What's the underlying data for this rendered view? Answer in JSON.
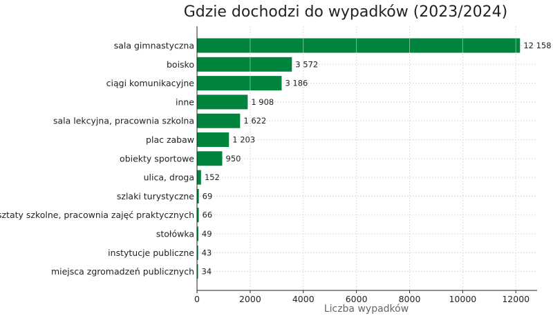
{
  "chart_data": {
    "type": "bar",
    "orientation": "horizontal",
    "title": "Gdzie dochodzi do wypadków (2023/2024)",
    "xlabel": "Liczba wypadków",
    "ylabel": "",
    "xlim": [
      0,
      12800
    ],
    "xticks": [
      0,
      2000,
      4000,
      6000,
      8000,
      10000,
      12000
    ],
    "grid": true,
    "bar_color": "#00843d",
    "categories": [
      "sala gimnastyczna",
      "boisko",
      "ciągi komunikacyjne",
      "inne",
      "sala lekcyjna, pracownia szkolna",
      "plac zabaw",
      "obiekty sportowe",
      "ulica, droga",
      "szlaki turystyczne",
      "warsztaty szkolne, pracownia zajęć praktycznych",
      "stołówka",
      "instytucje publiczne",
      "miejsca zgromadzeń publicznych"
    ],
    "values": [
      12158,
      3572,
      3186,
      1908,
      1622,
      1203,
      950,
      152,
      69,
      66,
      49,
      43,
      34
    ],
    "value_labels": [
      "12 158",
      "3 572",
      "3 186",
      "1 908",
      "1 622",
      "1 203",
      "950",
      "152",
      "69",
      "66",
      "49",
      "43",
      "34"
    ]
  }
}
